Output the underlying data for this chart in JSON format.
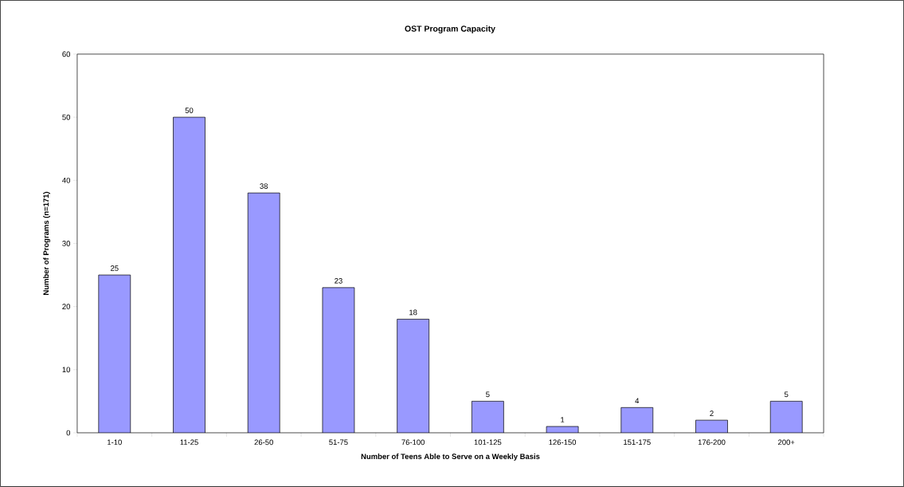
{
  "chart_data": {
    "type": "bar",
    "title": "OST Program Capacity",
    "xlabel": "Number of Teens Able to Serve on a Weekly Basis",
    "ylabel": "Number of Programs (n=171)",
    "categories": [
      "1-10",
      "11-25",
      "26-50",
      "51-75",
      "76-100",
      "101-125",
      "126-150",
      "151-175",
      "176-200",
      "200+"
    ],
    "values": [
      25,
      50,
      38,
      23,
      18,
      5,
      1,
      4,
      2,
      5
    ],
    "color": "#9999ff",
    "ylim": [
      0,
      60
    ],
    "yticks": [
      0,
      10,
      20,
      30,
      40,
      50,
      60
    ],
    "data_labels": true
  }
}
